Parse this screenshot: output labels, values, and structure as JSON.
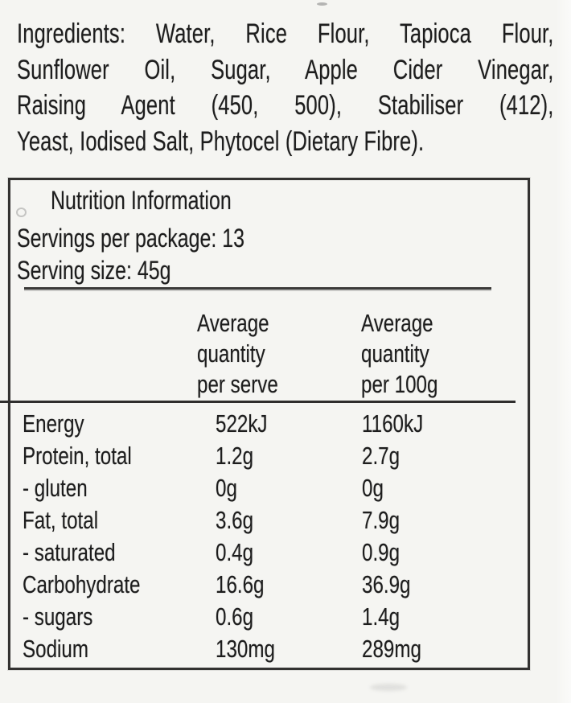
{
  "ingredients": {
    "lines": [
      "Ingredients: Water, Rice Flour, Tapioca Flour,",
      "Sunflower Oil, Sugar, Apple Cider Vinegar,",
      "Raising Agent (450, 500), Stabiliser (412),",
      "Yeast, Iodised Salt, Phytocel (Dietary Fibre)."
    ]
  },
  "nutrition_panel": {
    "title": "Nutrition Information",
    "servings_per_package": "Servings per package: 13",
    "serving_size": "Serving size: 45g",
    "columns": {
      "per_serve": [
        "Average",
        "quantity",
        "per serve"
      ],
      "per_100g": [
        "Average",
        "quantity",
        "per 100g"
      ]
    },
    "rows": [
      {
        "label": "Energy",
        "per_serve": "522kJ",
        "per_100g": "1160kJ"
      },
      {
        "label": "Protein, total",
        "per_serve": "1.2g",
        "per_100g": "2.7g"
      },
      {
        "label": "- gluten",
        "per_serve": "0g",
        "per_100g": "0g"
      },
      {
        "label": "Fat, total",
        "per_serve": "3.6g",
        "per_100g": "7.9g"
      },
      {
        "label": "- saturated",
        "per_serve": "0.4g",
        "per_100g": "0.9g"
      },
      {
        "label": "Carbohydrate",
        "per_serve": "16.6g",
        "per_100g": "36.9g"
      },
      {
        "label": "- sugars",
        "per_serve": "0.6g",
        "per_100g": "1.4g"
      },
      {
        "label": "Sodium",
        "per_serve": "130mg",
        "per_100g": "289mg"
      }
    ]
  },
  "colors": {
    "background": "#f5f5f2",
    "text": "#1d1d1d",
    "border": "#333231"
  }
}
